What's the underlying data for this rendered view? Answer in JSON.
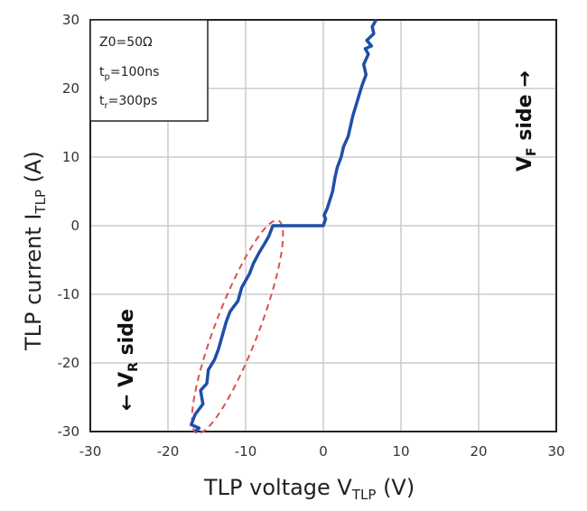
{
  "chart_data": {
    "type": "line",
    "xlabel": {
      "main": "TLP voltage V",
      "sub": "TLP",
      "unit": " (V)"
    },
    "ylabel": {
      "main": "TLP current I",
      "sub": "TLP",
      "unit": " (A)"
    },
    "xlim": [
      -30,
      30
    ],
    "ylim": [
      -30,
      30
    ],
    "xticks": [
      "-30",
      "-20",
      "-10",
      "0",
      "10",
      "20",
      "30"
    ],
    "yticks": [
      "30",
      "20",
      "10",
      "0",
      "-10",
      "-20",
      "-30"
    ],
    "grid": true,
    "line_color": "#1f4fa8",
    "ellipse_color": "#d9534f",
    "series": [
      {
        "x": [
          -16.5,
          -16,
          -17,
          -16.5,
          -15.5,
          -15.8,
          -15,
          -14.8,
          -14,
          -13.5,
          -13,
          -12.5,
          -12,
          -11,
          -10.5,
          -9.5,
          -9,
          -8.3,
          -7.5,
          -7,
          -6.5,
          0,
          0.3,
          0.1,
          0.5,
          1.2,
          1.5,
          1.8,
          2.3,
          2.6,
          3.2,
          3.5,
          3.8,
          4.2,
          4.6,
          5,
          5.5,
          5.2,
          5.8,
          5.4,
          6.2,
          5.6,
          6.5,
          6.3,
          6.8
        ],
        "y": [
          -30,
          -29.5,
          -29,
          -27.5,
          -26,
          -24,
          -23,
          -21,
          -19.5,
          -18,
          -16,
          -14,
          -12.5,
          -11,
          -9,
          -7,
          -5.5,
          -4,
          -2.5,
          -1.5,
          0,
          0,
          1,
          1.5,
          2.5,
          5,
          7,
          8.5,
          10,
          11.5,
          13,
          14.5,
          16,
          17.5,
          19,
          20.5,
          22,
          23.5,
          25,
          25.8,
          26.2,
          27,
          28,
          29,
          30
        ]
      }
    ],
    "annotations": {
      "legend_lines": [
        {
          "main": "Z0=50Ω",
          "sub": ""
        },
        {
          "main": "t",
          "sub": "p",
          "rest": "=100ns"
        },
        {
          "main": "t",
          "sub": "r",
          "rest": "=300ps"
        }
      ],
      "vf": {
        "main": "V",
        "sub": "F",
        "rest": " side →"
      },
      "vr": {
        "pre": "← V",
        "sub": "R",
        "rest": " side"
      }
    }
  }
}
